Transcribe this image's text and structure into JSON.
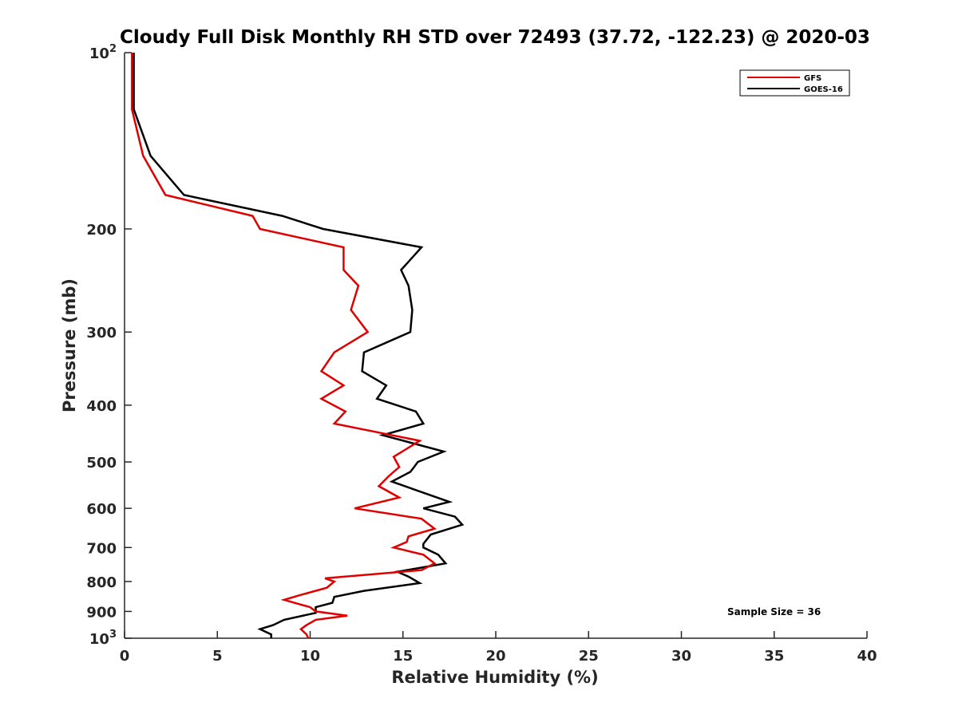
{
  "chart_data": {
    "type": "line",
    "title": "Cloudy Full Disk Monthly RH STD over 72493 (37.72, -122.23) @ 2020-03",
    "xlabel": "Relative Humidity (%)",
    "ylabel": "Pressure (mb)",
    "xlim": [
      0,
      40
    ],
    "ylim": [
      100,
      1000
    ],
    "y_scale": "log",
    "y_reversed": true,
    "grid": false,
    "legend_position": "top-right",
    "x_ticks": [
      "0",
      "5",
      "10",
      "15",
      "20",
      "25",
      "30",
      "35",
      "40"
    ],
    "y_ticks": [
      {
        "value": 100,
        "base": "10",
        "exp": "2"
      },
      {
        "value": 200,
        "label": "200"
      },
      {
        "value": 300,
        "label": "300"
      },
      {
        "value": 400,
        "label": "400"
      },
      {
        "value": 500,
        "label": "500"
      },
      {
        "value": 600,
        "label": "600"
      },
      {
        "value": 700,
        "label": "700"
      },
      {
        "value": 800,
        "label": "800"
      },
      {
        "value": 900,
        "label": "900"
      },
      {
        "value": 1000,
        "base": "10",
        "exp": "3"
      }
    ],
    "series": [
      {
        "name": "GFS",
        "color": "#e00000",
        "points": [
          [
            0.4,
            100
          ],
          [
            0.4,
            125
          ],
          [
            1.0,
            150
          ],
          [
            2.2,
            175
          ],
          [
            6.9,
            190
          ],
          [
            7.3,
            200
          ],
          [
            11.8,
            215
          ],
          [
            11.8,
            235
          ],
          [
            12.6,
            250
          ],
          [
            12.2,
            275
          ],
          [
            13.1,
            300
          ],
          [
            11.3,
            325
          ],
          [
            10.6,
            350
          ],
          [
            11.8,
            370
          ],
          [
            10.6,
            390
          ],
          [
            11.9,
            410
          ],
          [
            11.3,
            430
          ],
          [
            15.9,
            460
          ],
          [
            14.5,
            490
          ],
          [
            14.8,
            510
          ],
          [
            14.2,
            530
          ],
          [
            13.7,
            550
          ],
          [
            14.8,
            575
          ],
          [
            12.4,
            600
          ],
          [
            16.0,
            625
          ],
          [
            16.7,
            650
          ],
          [
            15.3,
            670
          ],
          [
            15.2,
            685
          ],
          [
            14.5,
            700
          ],
          [
            16.1,
            720
          ],
          [
            16.7,
            745
          ],
          [
            16.0,
            765
          ],
          [
            10.8,
            790
          ],
          [
            11.3,
            800
          ],
          [
            10.9,
            820
          ],
          [
            9.4,
            845
          ],
          [
            8.6,
            860
          ],
          [
            10.0,
            885
          ],
          [
            10.3,
            900
          ],
          [
            12.0,
            915
          ],
          [
            10.3,
            930
          ],
          [
            9.8,
            950
          ],
          [
            9.5,
            965
          ],
          [
            9.8,
            985
          ],
          [
            9.9,
            1000
          ]
        ]
      },
      {
        "name": "GOES-16",
        "color": "#000000",
        "points": [
          [
            0.5,
            100
          ],
          [
            0.5,
            125
          ],
          [
            1.4,
            150
          ],
          [
            3.2,
            175
          ],
          [
            8.5,
            190
          ],
          [
            10.7,
            200
          ],
          [
            16.0,
            215
          ],
          [
            14.9,
            235
          ],
          [
            15.3,
            250
          ],
          [
            15.5,
            275
          ],
          [
            15.4,
            300
          ],
          [
            12.9,
            325
          ],
          [
            12.8,
            350
          ],
          [
            14.1,
            370
          ],
          [
            13.6,
            390
          ],
          [
            15.7,
            410
          ],
          [
            16.1,
            430
          ],
          [
            13.9,
            450
          ],
          [
            17.2,
            480
          ],
          [
            15.8,
            500
          ],
          [
            15.6,
            510
          ],
          [
            15.4,
            520
          ],
          [
            14.4,
            540
          ],
          [
            15.8,
            560
          ],
          [
            17.5,
            585
          ],
          [
            16.1,
            600
          ],
          [
            17.8,
            620
          ],
          [
            18.2,
            640
          ],
          [
            16.5,
            665
          ],
          [
            16.1,
            690
          ],
          [
            16.1,
            700
          ],
          [
            16.9,
            720
          ],
          [
            17.3,
            745
          ],
          [
            14.7,
            770
          ],
          [
            15.3,
            785
          ],
          [
            15.9,
            805
          ],
          [
            12.9,
            830
          ],
          [
            11.3,
            850
          ],
          [
            11.2,
            870
          ],
          [
            10.3,
            885
          ],
          [
            10.3,
            905
          ],
          [
            8.6,
            930
          ],
          [
            8.0,
            950
          ],
          [
            7.3,
            965
          ],
          [
            7.9,
            985
          ],
          [
            7.9,
            1000
          ]
        ]
      }
    ],
    "annotation": "Sample Size = 36"
  }
}
